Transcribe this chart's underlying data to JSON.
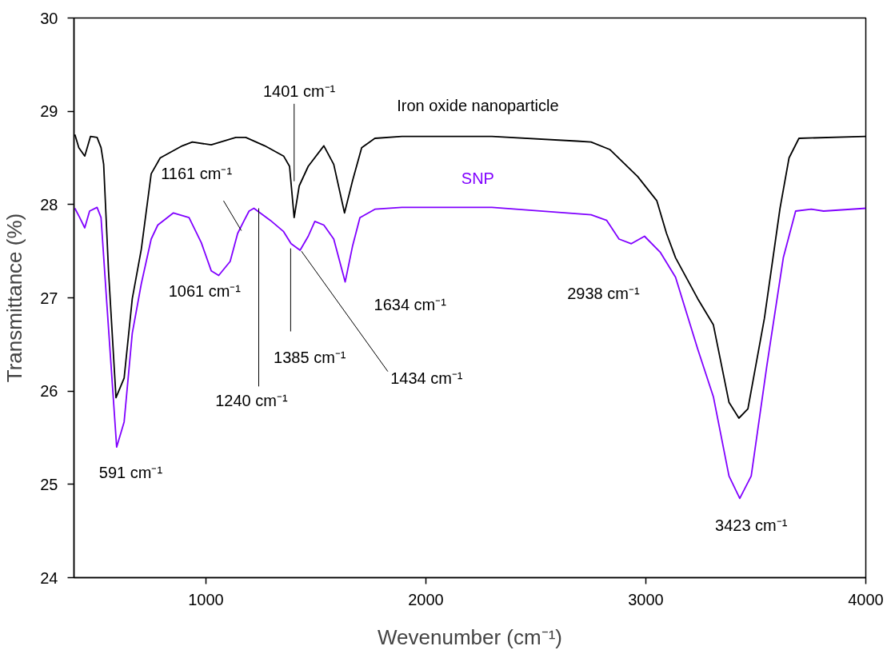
{
  "chart_data": {
    "type": "line",
    "xlabel": "Wevenumber (cm⁻¹)",
    "ylabel": "Transmittance (%)",
    "xlim": [
      400,
      4000
    ],
    "ylim": [
      24,
      30
    ],
    "xticks": [
      1000,
      2000,
      3000,
      4000
    ],
    "yticks": [
      24,
      25,
      26,
      27,
      28,
      29,
      30
    ],
    "grid": false,
    "legend": false,
    "marker": "none",
    "line_style": "solid",
    "series": [
      {
        "name": "Iron oxide nanoparticle",
        "color": "#000000",
        "x": [
          404,
          422,
          449,
          475,
          505,
          523,
          535,
          557,
          591,
          628,
          665,
          706,
          751,
          792,
          893,
          938,
          1024,
          1136,
          1181,
          1267,
          1353,
          1380,
          1401,
          1424,
          1465,
          1536,
          1581,
          1630,
          1667,
          1708,
          1768,
          1891,
          2300,
          2687,
          2751,
          2836,
          2963,
          3050,
          3094,
          3135,
          3236,
          3307,
          3378,
          3423,
          3464,
          3539,
          3610,
          3651,
          3696,
          4000
        ],
        "values": [
          28.75,
          28.61,
          28.52,
          28.73,
          28.72,
          28.61,
          28.43,
          27.29,
          25.93,
          26.14,
          26.99,
          27.52,
          28.33,
          28.5,
          28.63,
          28.67,
          28.64,
          28.72,
          28.72,
          28.63,
          28.52,
          28.41,
          27.86,
          28.2,
          28.41,
          28.63,
          28.43,
          27.91,
          28.26,
          28.61,
          28.71,
          28.73,
          28.73,
          28.68,
          28.67,
          28.59,
          28.3,
          28.04,
          27.69,
          27.43,
          26.99,
          26.71,
          25.88,
          25.71,
          25.81,
          26.78,
          27.96,
          28.5,
          28.71,
          28.73
        ]
      },
      {
        "name": "SNP",
        "color": "#8000ff",
        "x": [
          404,
          426,
          449,
          471,
          505,
          523,
          549,
          594,
          628,
          665,
          706,
          751,
          781,
          852,
          923,
          979,
          1024,
          1058,
          1110,
          1144,
          1174,
          1196,
          1218,
          1293,
          1353,
          1387,
          1428,
          1465,
          1495,
          1536,
          1581,
          1633,
          1667,
          1700,
          1768,
          1891,
          2300,
          2751,
          2822,
          2878,
          2934,
          2994,
          3065,
          3135,
          3236,
          3307,
          3378,
          3427,
          3479,
          3550,
          3625,
          3681,
          3752,
          3808,
          4000
        ],
        "values": [
          27.96,
          27.86,
          27.75,
          27.93,
          27.97,
          27.86,
          26.95,
          25.4,
          25.67,
          26.62,
          27.15,
          27.63,
          27.78,
          27.91,
          27.86,
          27.59,
          27.29,
          27.24,
          27.39,
          27.69,
          27.83,
          27.93,
          27.96,
          27.83,
          27.71,
          27.58,
          27.51,
          27.66,
          27.82,
          27.78,
          27.63,
          27.17,
          27.56,
          27.86,
          27.95,
          27.97,
          27.97,
          27.89,
          27.83,
          27.63,
          27.58,
          27.66,
          27.49,
          27.22,
          26.45,
          25.94,
          25.09,
          24.85,
          25.09,
          26.27,
          27.43,
          27.93,
          27.95,
          27.93,
          27.96
        ]
      }
    ],
    "annotations": [
      {
        "text": "1401 cm⁻¹",
        "x": 1401,
        "y": 28.25
      },
      {
        "text": "1161 cm⁻¹",
        "x": 1161,
        "y": 27.72
      },
      {
        "text": "1061 cm⁻¹",
        "x": 1061,
        "y": 27.24
      },
      {
        "text": "1240 cm⁻¹",
        "x": 1240,
        "y": 27.96
      },
      {
        "text": "1385 cm⁻¹",
        "x": 1385,
        "y": 27.53
      },
      {
        "text": "1434 cm⁻¹",
        "x": 1434,
        "y": 27.5
      },
      {
        "text": "1634 cm⁻¹",
        "x": 1634,
        "y": 27.17
      },
      {
        "text": "2938 cm⁻¹",
        "x": 2938,
        "y": 27.58
      },
      {
        "text": "591 cm⁻¹",
        "x": 591,
        "y": 25.4
      },
      {
        "text": "3423 cm⁻¹",
        "x": 3423,
        "y": 24.85
      }
    ]
  }
}
